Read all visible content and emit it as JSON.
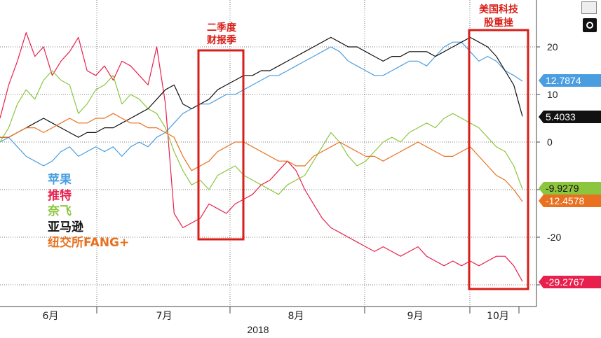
{
  "chart_data": {
    "type": "line",
    "xlabel": "2018",
    "x_ticks": [
      "6月",
      "7月",
      "8月",
      "9月",
      "10月"
    ],
    "y_ticks": [
      20,
      10,
      0,
      -20
    ],
    "ylim": [
      -30.5,
      25
    ],
    "grid": true,
    "legend_placement": "left",
    "series": [
      {
        "name": "苹果",
        "color": "#4a9ee0",
        "last": "12.7874",
        "x": [
          0,
          5,
          10,
          15,
          20,
          25,
          30,
          35,
          40,
          45,
          50,
          55,
          60,
          65,
          70,
          75,
          80,
          85,
          90,
          95,
          100,
          105,
          110,
          115,
          120,
          125,
          130,
          135,
          140,
          145,
          150,
          155,
          160,
          165,
          170,
          175,
          180,
          185,
          190,
          195,
          200,
          205,
          210,
          215,
          220,
          225,
          230,
          235,
          240,
          245,
          250,
          255,
          260,
          265,
          270,
          275,
          280,
          285,
          290,
          295,
          300
        ],
        "y": [
          0,
          1,
          -1,
          -3,
          -4,
          -5,
          -4,
          -2,
          -1,
          -3,
          -2,
          -1,
          -2,
          -1,
          -3,
          -1,
          0,
          -1,
          1,
          2,
          4,
          6,
          7,
          8,
          8,
          9,
          10,
          10,
          11,
          12,
          13,
          14,
          14,
          15,
          16,
          17,
          18,
          19,
          20,
          19,
          17,
          16,
          15,
          14,
          14,
          15,
          16,
          17,
          17,
          16,
          18,
          20,
          21,
          21,
          19,
          17,
          18,
          17,
          15,
          14,
          12.8
        ]
      },
      {
        "name": "推特",
        "color": "#e8204e",
        "last": "-29.2767",
        "x": [
          0,
          5,
          10,
          15,
          20,
          25,
          30,
          35,
          40,
          45,
          50,
          55,
          60,
          65,
          70,
          75,
          80,
          85,
          90,
          95,
          100,
          105,
          110,
          115,
          120,
          125,
          130,
          135,
          140,
          145,
          150,
          155,
          160,
          165,
          170,
          175,
          180,
          185,
          190,
          195,
          200,
          205,
          210,
          215,
          220,
          225,
          230,
          235,
          240,
          245,
          250,
          255,
          260,
          265,
          270,
          275,
          280,
          285,
          290,
          295,
          300
        ],
        "y": [
          5,
          12,
          17,
          23,
          18,
          20,
          14,
          17,
          19,
          22,
          15,
          14,
          16,
          13,
          17,
          16,
          14,
          12,
          20,
          8,
          -15,
          -18,
          -17,
          -16,
          -13,
          -14,
          -15,
          -13,
          -12,
          -11,
          -9,
          -8,
          -6,
          -4,
          -6,
          -10,
          -13,
          -16,
          -18,
          -19,
          -20,
          -21,
          -22,
          -23,
          -22,
          -23,
          -24,
          -23,
          -22,
          -24,
          -25,
          -26,
          -25,
          -26,
          -25,
          -26,
          -25,
          -24,
          -24,
          -26,
          -29.3
        ]
      },
      {
        "name": "奈飞",
        "color": "#8cc63f",
        "last": "-9.9279",
        "x": [
          0,
          5,
          10,
          15,
          20,
          25,
          30,
          35,
          40,
          45,
          50,
          55,
          60,
          65,
          70,
          75,
          80,
          85,
          90,
          95,
          100,
          105,
          110,
          115,
          120,
          125,
          130,
          135,
          140,
          145,
          150,
          155,
          160,
          165,
          170,
          175,
          180,
          185,
          190,
          195,
          200,
          205,
          210,
          215,
          220,
          225,
          230,
          235,
          240,
          245,
          250,
          255,
          260,
          265,
          270,
          275,
          280,
          285,
          290,
          295,
          300
        ],
        "y": [
          0,
          3,
          8,
          11,
          9,
          13,
          15,
          13,
          12,
          6,
          8,
          11,
          12,
          14,
          8,
          10,
          9,
          7,
          6,
          3,
          -2,
          -6,
          -9,
          -8,
          -10,
          -7,
          -6,
          -5,
          -7,
          -8,
          -9,
          -10,
          -11,
          -9,
          -8,
          -7,
          -4,
          -1,
          2,
          0,
          -3,
          -5,
          -4,
          -2,
          0,
          1,
          0,
          2,
          3,
          4,
          3,
          5,
          6,
          5,
          4,
          3,
          1,
          -1,
          -2,
          -5,
          -9.9
        ]
      },
      {
        "name": "亚马逊",
        "color": "#111111",
        "last": "5.4033",
        "x": [
          0,
          5,
          10,
          15,
          20,
          25,
          30,
          35,
          40,
          45,
          50,
          55,
          60,
          65,
          70,
          75,
          80,
          85,
          90,
          95,
          100,
          105,
          110,
          115,
          120,
          125,
          130,
          135,
          140,
          145,
          150,
          155,
          160,
          165,
          170,
          175,
          180,
          185,
          190,
          195,
          200,
          205,
          210,
          215,
          220,
          225,
          230,
          235,
          240,
          245,
          250,
          255,
          260,
          265,
          270,
          275,
          280,
          285,
          290,
          295,
          300
        ],
        "y": [
          1,
          1,
          2,
          3,
          4,
          5,
          4,
          3,
          2,
          1,
          2,
          2,
          3,
          3,
          4,
          5,
          6,
          7,
          9,
          11,
          12,
          8,
          7,
          8,
          9,
          11,
          12,
          13,
          14,
          14,
          15,
          15,
          16,
          17,
          18,
          19,
          20,
          21,
          22,
          21,
          20,
          20,
          19,
          18,
          17,
          18,
          18,
          19,
          19,
          19,
          18,
          19,
          20,
          21,
          22,
          21,
          20,
          18,
          15,
          12,
          5.4
        ]
      },
      {
        "name": "纽交所FANG+",
        "color": "#e8701e",
        "last": "-12.4578",
        "x": [
          0,
          5,
          10,
          15,
          20,
          25,
          30,
          35,
          40,
          45,
          50,
          55,
          60,
          65,
          70,
          75,
          80,
          85,
          90,
          95,
          100,
          105,
          110,
          115,
          120,
          125,
          130,
          135,
          140,
          145,
          150,
          155,
          160,
          165,
          170,
          175,
          180,
          185,
          190,
          195,
          200,
          205,
          210,
          215,
          220,
          225,
          230,
          235,
          240,
          245,
          250,
          255,
          260,
          265,
          270,
          275,
          280,
          285,
          290,
          295,
          300
        ],
        "y": [
          1,
          1,
          2,
          3,
          3,
          2,
          3,
          4,
          5,
          4,
          4,
          5,
          5,
          6,
          5,
          4,
          4,
          3,
          3,
          2,
          1,
          -3,
          -6,
          -5,
          -4,
          -2,
          -1,
          0,
          0,
          -1,
          -2,
          -3,
          -4,
          -4,
          -5,
          -5,
          -3,
          -2,
          -1,
          0,
          -1,
          -2,
          -3,
          -3,
          -4,
          -3,
          -2,
          -1,
          0,
          -1,
          -2,
          -3,
          -3,
          -2,
          -1,
          -3,
          -5,
          -7,
          -8,
          -10,
          -12.5
        ]
      }
    ],
    "annotations": [
      {
        "label_line1": "二季度",
        "label_line2": "财报季"
      },
      {
        "label_line1": "美国科技",
        "label_line2": "股重挫"
      }
    ]
  }
}
